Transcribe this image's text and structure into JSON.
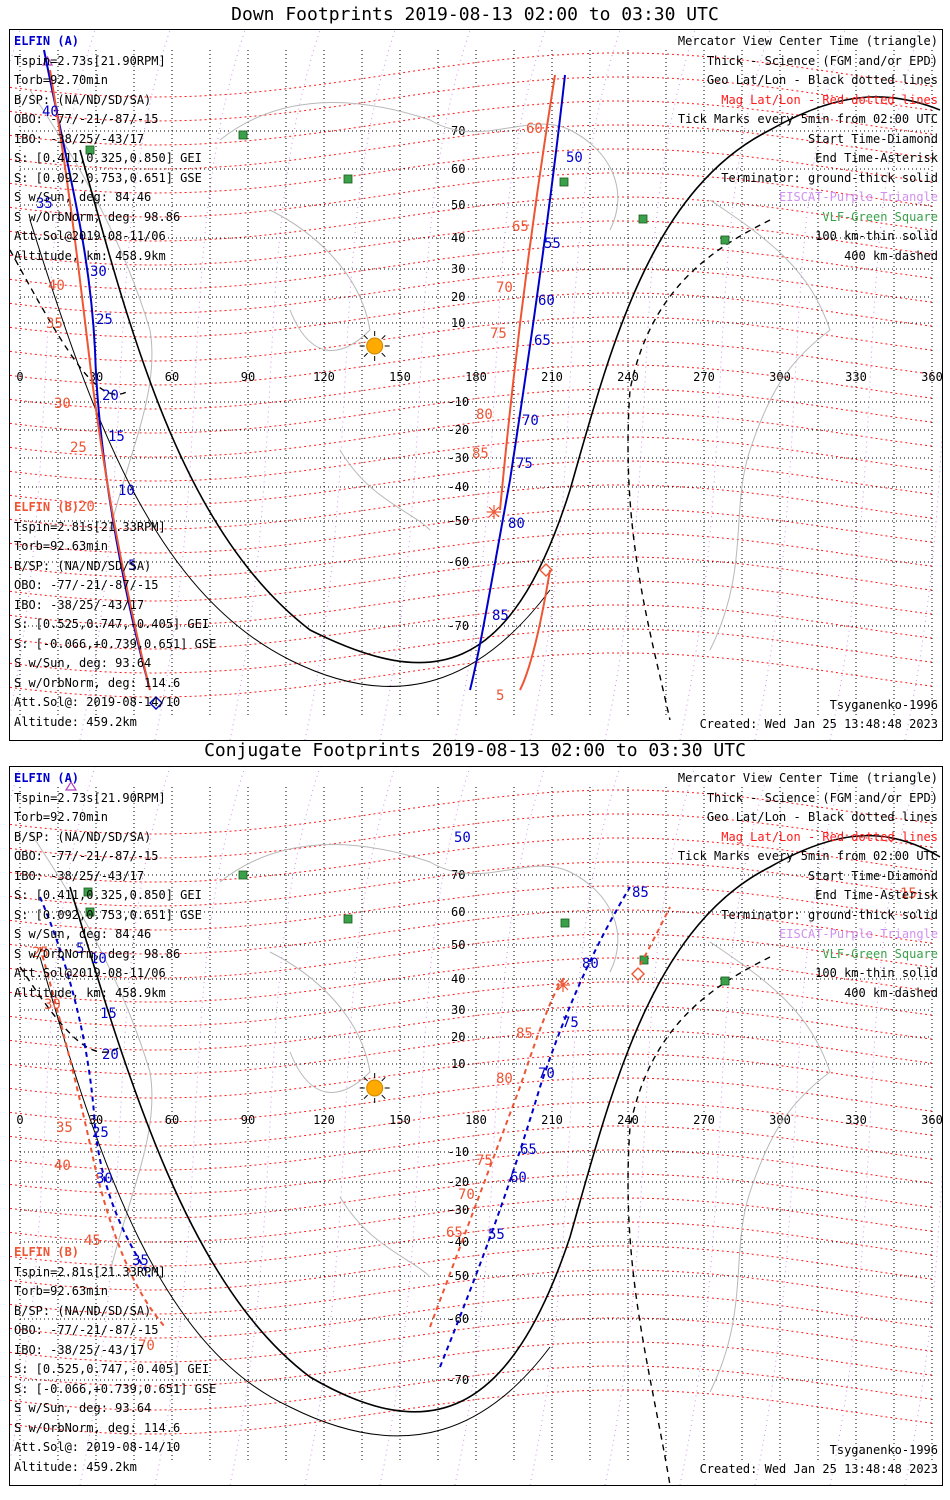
{
  "top": {
    "title": "Down Footprints 2019-08-13 02:00 to 03:30 UTC",
    "elfin_a": {
      "label": "ELFIN (A)",
      "lines": [
        "Tspin=2.73s[21.90RPM]",
        "Torb=92.70min",
        "B/SP: (NA/ND/SD/SA)",
        "OBO: -77/-21/-87/-15",
        "IBO: -38/25/-43/17",
        "S: [0.411,0.325,0.850] GEI",
        "S: [0.092,0.753,0.651] GSE",
        "S w/Sun, deg: 84.46",
        "S w/OrbNorm, deg: 98.86",
        "Att.Sol@2019-08-11/06",
        "Altitude, km: 458.9km"
      ]
    },
    "elfin_b": {
      "label": "ELFIN (B)",
      "lines": [
        "Tspin=2.81s[21.33RPM]",
        "Torb=92.63min",
        "B/SP: (NA/ND/SD/SA)",
        "OBO: -77/-21/-87/-15",
        "IBO: -38/25/-43/17",
        "S: [0.525,0.747,-0.405] GEI",
        "S: [-0.066,+0.739,0.651] GSE",
        "S w/Sun, deg: 93.64",
        "S w/OrbNorm, deg: 114.6",
        "Att.Sol@: 2019-08-14/10",
        "Altitude: 459.2km"
      ]
    },
    "footer_model": "Tsyganenko-1996",
    "footer_created": "Created: Wed Jan 25 13:48:48 2023"
  },
  "bottom": {
    "title": "Conjugate Footprints 2019-08-13 02:00 to 03:30 UTC",
    "elfin_a": {
      "label": "ELFIN (A)",
      "lines": [
        "Tspin=2.73s[21.90RPM]",
        "Torb=92.70min",
        "B/SP: (NA/ND/SD/SA)",
        "OBO: -77/-21/-87/-15",
        "IBO: -38/25/-43/17",
        "S: [0.411,0.325,0.850] GEI",
        "S: [0.092,0.753,0.651] GSE",
        "S w/Sun, deg: 84.46",
        "S w/OrbNorm, deg: 98.86",
        "Att.Sol@2019-08-11/06",
        "Altitude, km: 458.9km"
      ]
    },
    "elfin_b": {
      "label": "ELFIN (B)",
      "lines": [
        "Tspin=2.81s[21.33RPM]",
        "Torb=92.63min",
        "B/SP: (NA/ND/SD/SA)",
        "OBO: -77/-21/-87/-15",
        "IBO: -38/25/-43/17",
        "S: [0.525,0.747,-0.405] GEI",
        "S: [-0.066,+0.739,0.651] GSE",
        "S w/Sun, deg: 93.64",
        "S w/OrbNorm, deg: 114.6",
        "Att.Sol@: 2019-08-14/10",
        "Altitude: 459.2km"
      ]
    },
    "footer_model": "Tsyganenko-1996",
    "footer_created": "Created: Wed Jan 25 13:48:48 2023"
  },
  "legend": {
    "lines": [
      {
        "text": "Mercator View Center Time (triangle)",
        "color": "#000000"
      },
      {
        "text": "Thick - Science (FGM and/or EPD)",
        "color": "#000000"
      },
      {
        "text": "Geo Lat/Lon - Black dotted lines",
        "color": "#000000"
      },
      {
        "text": "Mag Lat/Lon - Red dotted lines",
        "color": "#ff1a1a"
      },
      {
        "text": "Tick Marks every 5min from 02:00 UTC",
        "color": "#000000"
      },
      {
        "text": "Start Time-Diamond",
        "color": "#000000"
      },
      {
        "text": "End Time-Asterisk",
        "color": "#000000"
      },
      {
        "text": "Terminator: ground-thick solid",
        "color": "#000000"
      },
      {
        "text": "EISCAT-Purple Triangle",
        "color": "#d090f0"
      },
      {
        "text": "VLF-Green Square",
        "color": "#3aa04a"
      },
      {
        "text": "100 km-thin solid",
        "color": "#000000"
      },
      {
        "text": "400 km-dashed",
        "color": "#000000"
      }
    ]
  },
  "axes": {
    "lon_ticks": [
      "0",
      "30",
      "60",
      "90",
      "120",
      "150",
      "180",
      "210",
      "240",
      "270",
      "300",
      "330",
      "360"
    ],
    "lat_ticks": [
      "70",
      "60",
      "50",
      "40",
      "30",
      "20",
      "10",
      "-10",
      "-20",
      "-30",
      "-40",
      "-50",
      "-60",
      "-70"
    ]
  },
  "colors": {
    "elfin_a": "#0000cc",
    "elfin_b": "#ee5533",
    "mag_grid": "#ff1a1a",
    "vlf": "#3aa04a",
    "sun": "#ffaa00"
  },
  "top_ticks": {
    "a_labels": [
      "40",
      "35",
      "30",
      "25",
      "20",
      "15",
      "10",
      "5",
      "50",
      "55",
      "60",
      "65",
      "70",
      "75",
      "80",
      "85"
    ],
    "b_labels": [
      "40",
      "35",
      "30",
      "25",
      "20",
      "60",
      "65",
      "70",
      "75",
      "80",
      "85",
      "5"
    ]
  },
  "bottom_ticks": {
    "a_labels": [
      "5",
      "10",
      "15",
      "20",
      "25",
      "30",
      "35",
      "50",
      "55",
      "60",
      "65",
      "70",
      "75",
      "80",
      "85"
    ],
    "b_labels": [
      "25",
      "30",
      "35",
      "40",
      "45",
      "65",
      "70",
      "75",
      "80",
      "85",
      "70",
      "15"
    ]
  }
}
